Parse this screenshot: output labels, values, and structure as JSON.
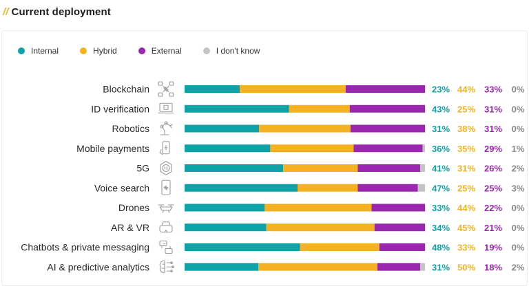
{
  "heading": {
    "prefix": "//",
    "title": "Current deployment"
  },
  "colors": {
    "internal": "#0fa3a8",
    "hybrid": "#f4b223",
    "external": "#9b27b0",
    "unknown": "#c4c4c4"
  },
  "legend": [
    {
      "label": "Internal",
      "color": "#0fa3a8"
    },
    {
      "label": "Hybrid",
      "color": "#f4b223"
    },
    {
      "label": "External",
      "color": "#9b27b0"
    },
    {
      "label": "I don't know",
      "color": "#c4c4c4"
    }
  ],
  "chart_data": {
    "type": "bar",
    "orientation": "horizontal",
    "stacked": true,
    "title": "Current deployment",
    "xlim": [
      0,
      100
    ],
    "categories": [
      {
        "name": "Blockchain",
        "icon": "blockchain-icon"
      },
      {
        "name": "ID verification",
        "icon": "id-verification-icon"
      },
      {
        "name": "Robotics",
        "icon": "robot-arm-icon"
      },
      {
        "name": "Mobile payments",
        "icon": "mobile-payment-icon"
      },
      {
        "name": "5G",
        "icon": "5g-icon"
      },
      {
        "name": "Voice search",
        "icon": "voice-search-icon"
      },
      {
        "name": "Drones",
        "icon": "drone-icon"
      },
      {
        "name": "AR & VR",
        "icon": "vr-headset-icon"
      },
      {
        "name": "Chatbots & private messaging",
        "icon": "chatbot-icon"
      },
      {
        "name": "AI & predictive analytics",
        "icon": "ai-brain-icon"
      }
    ],
    "series": [
      {
        "name": "Internal",
        "color": "#0fa3a8",
        "values": [
          23,
          43,
          31,
          36,
          41,
          47,
          33,
          34,
          48,
          31
        ]
      },
      {
        "name": "Hybrid",
        "color": "#f4b223",
        "values": [
          44,
          25,
          38,
          35,
          31,
          25,
          44,
          45,
          33,
          50
        ]
      },
      {
        "name": "External",
        "color": "#9b27b0",
        "values": [
          33,
          31,
          31,
          29,
          26,
          25,
          22,
          21,
          19,
          18
        ]
      },
      {
        "name": "I don't know",
        "color": "#c4c4c4",
        "values": [
          0,
          0,
          0,
          1,
          2,
          3,
          0,
          0,
          0,
          2
        ]
      }
    ],
    "value_suffix": "%",
    "legend_position": "top-left",
    "grid": false
  }
}
